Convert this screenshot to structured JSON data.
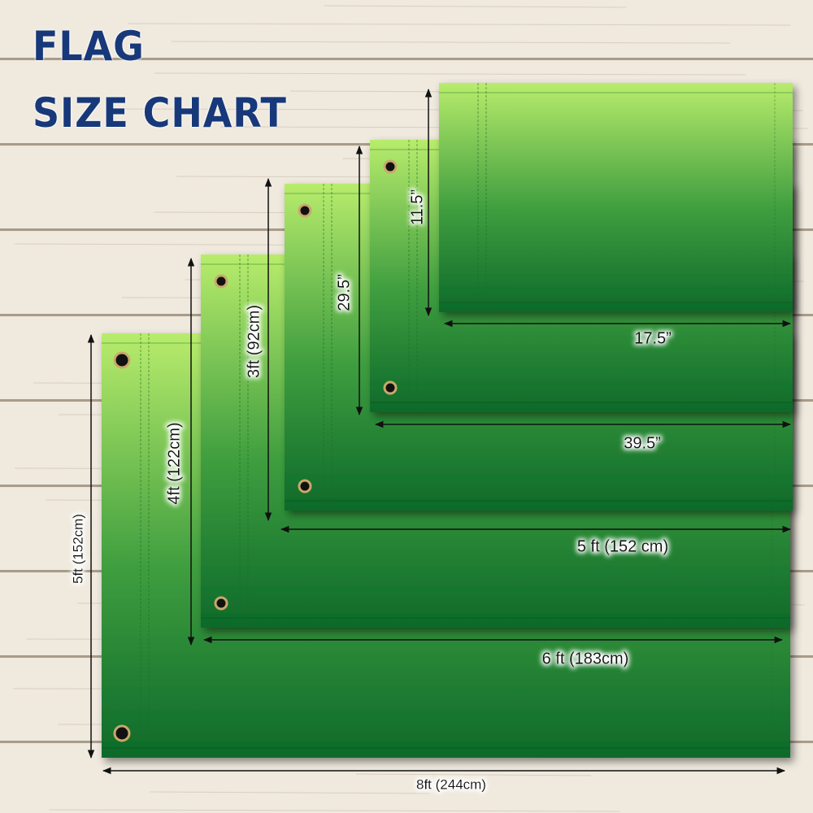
{
  "title": {
    "line1": "FLAG",
    "line2": "SIZE CHART"
  },
  "colors": {
    "title": "#17397a",
    "flag_top": "#b8ec6c",
    "flag_bottom": "#0d6a2a",
    "wood": "#ece6da",
    "arrow": "#111111"
  },
  "flags": [
    {
      "height_label": "5ft (152cm)",
      "width_label": "8ft (244cm)",
      "grommets": true
    },
    {
      "height_label": "4ft (122cm)",
      "width_label": "6 ft (183cm)",
      "grommets": true
    },
    {
      "height_label": "3ft (92cm)",
      "width_label": "5 ft (152 cm)",
      "grommets": true
    },
    {
      "height_label": "29.5”",
      "width_label": "39.5”",
      "grommets": true
    },
    {
      "height_label": "11.5”",
      "width_label": "17.5”",
      "grommets": false
    }
  ]
}
